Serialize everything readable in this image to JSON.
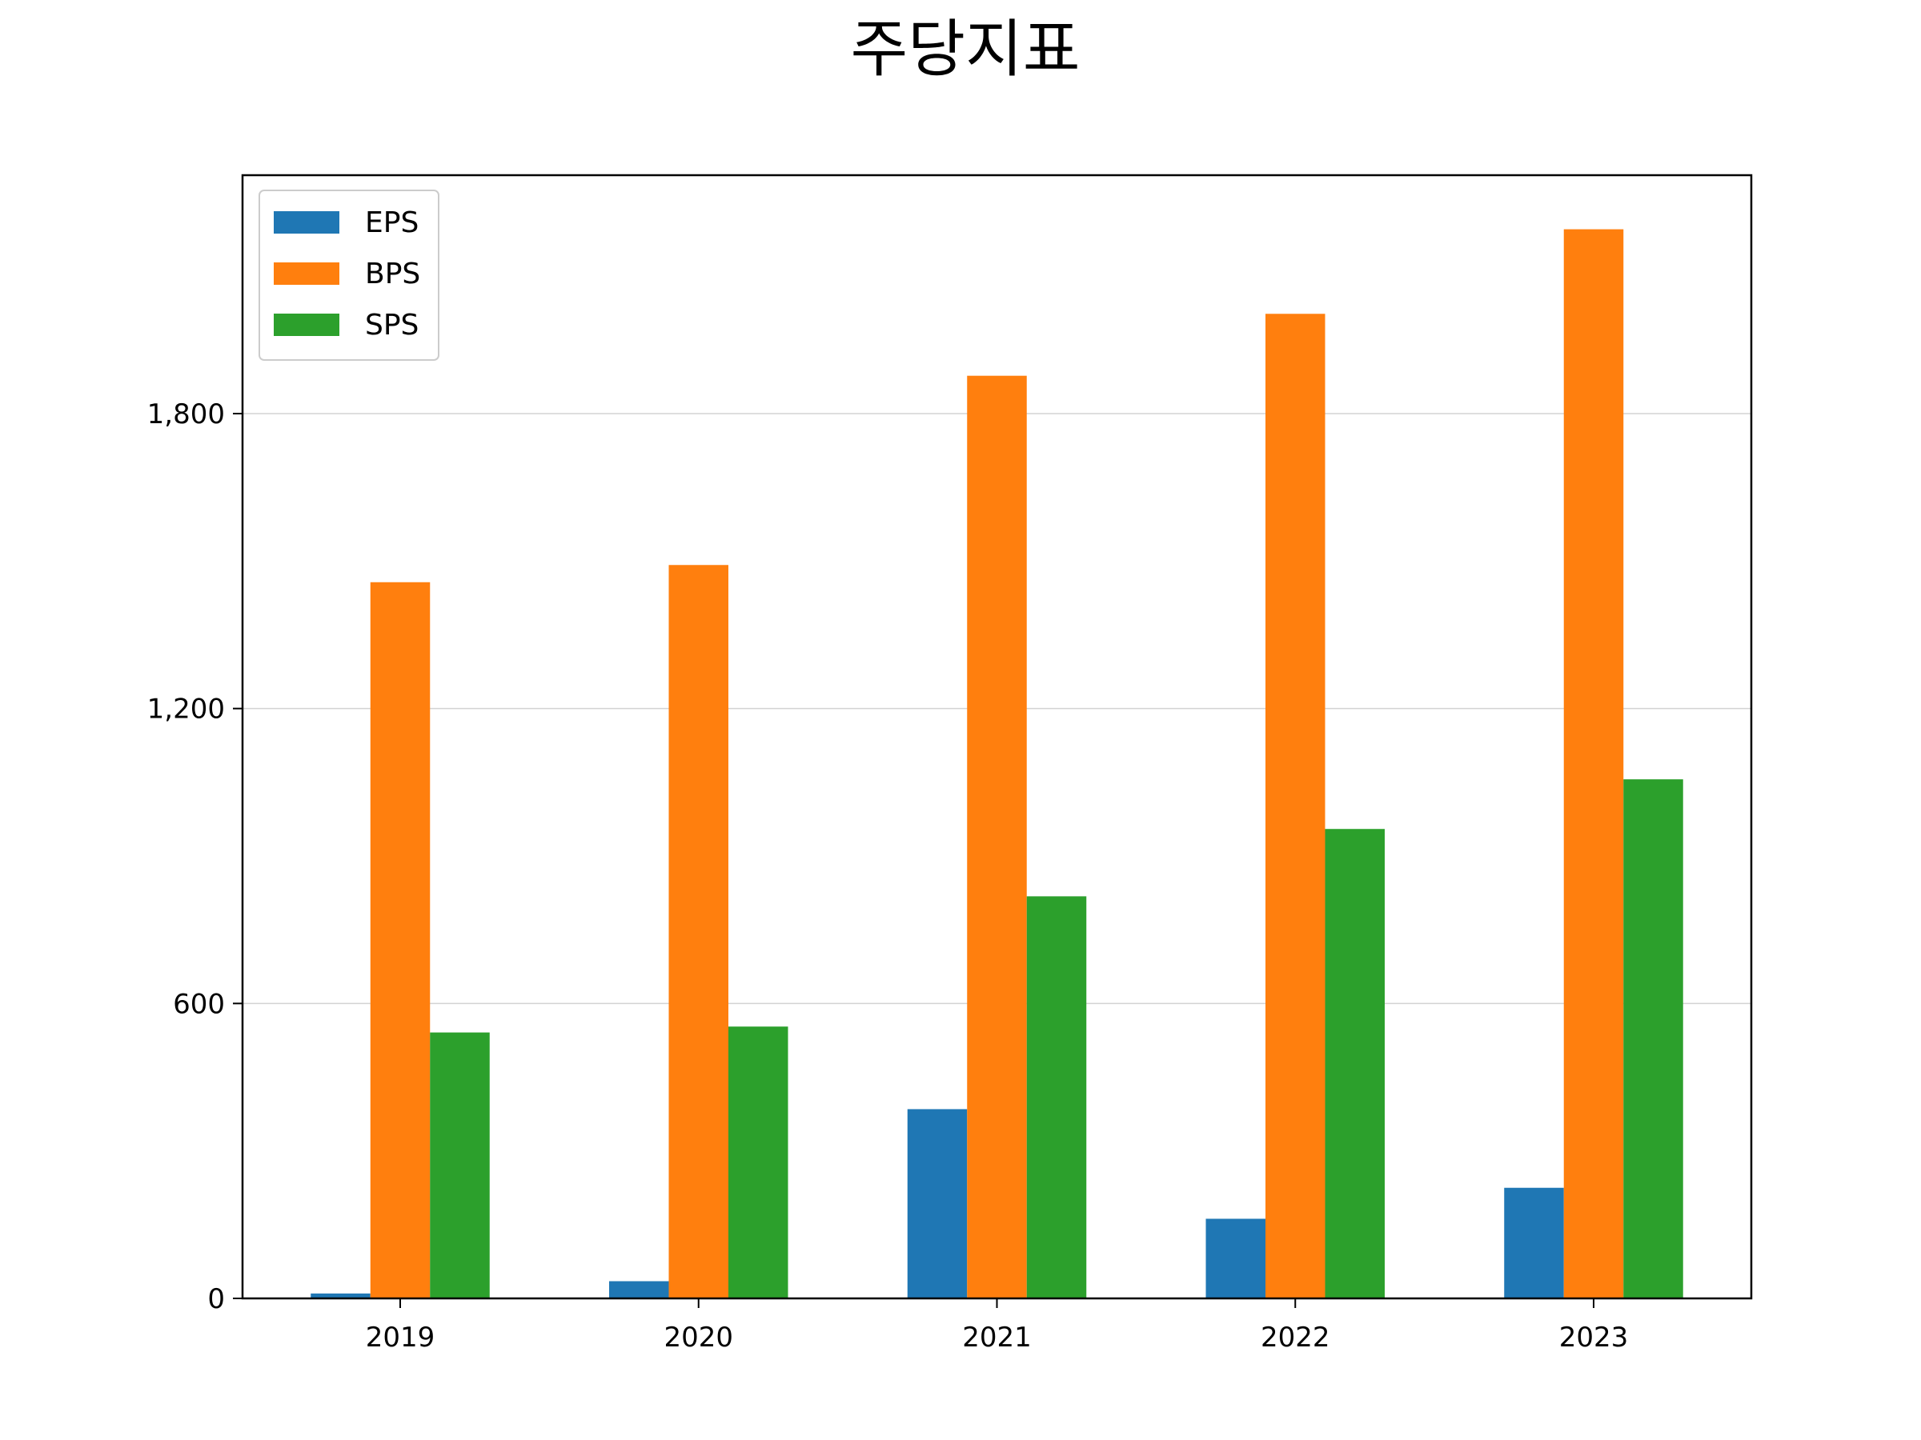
{
  "chart_data": {
    "type": "bar",
    "title": "주당지표",
    "xlabel": "",
    "ylabel": "",
    "categories": [
      "2019",
      "2020",
      "2021",
      "2022",
      "2023"
    ],
    "series": [
      {
        "name": "EPS",
        "color": "#1f77b4",
        "values": [
          10,
          35,
          385,
          162,
          225
        ]
      },
      {
        "name": "BPS",
        "color": "#ff7f0e",
        "values": [
          1457,
          1492,
          1877,
          2003,
          2175
        ]
      },
      {
        "name": "SPS",
        "color": "#2ca02c",
        "values": [
          541,
          553,
          818,
          955,
          1056
        ]
      }
    ],
    "ylim": [
      0,
      2285
    ],
    "yticks": [
      0,
      600,
      1200,
      1800
    ],
    "ytick_labels": [
      "0",
      "600",
      "1,200",
      "1,800"
    ],
    "grid": "horizontal",
    "legend_position": "top-left"
  }
}
